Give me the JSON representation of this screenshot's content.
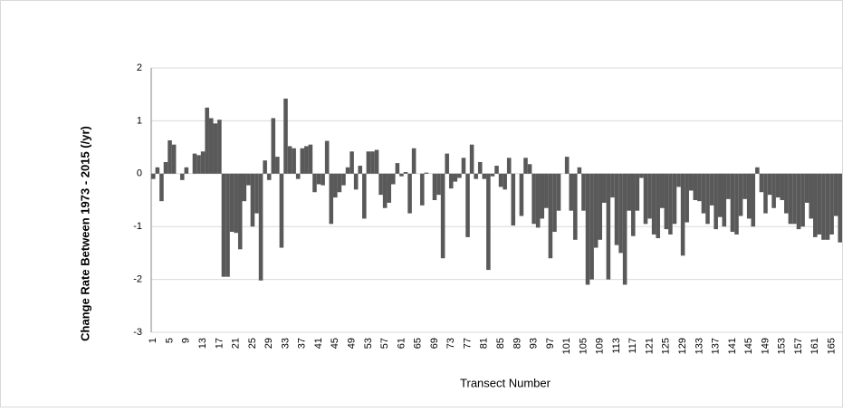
{
  "chart_data": {
    "type": "bar",
    "ylabel": "Change Rate Between 1973 - 2015 (/yr)",
    "xlabel": "Transect Number",
    "categories": [
      1,
      null,
      null,
      null,
      5,
      null,
      null,
      null,
      9,
      null,
      null,
      null,
      13,
      null,
      null,
      null,
      17,
      null,
      null,
      null,
      21,
      null,
      null,
      null,
      25,
      null,
      null,
      null,
      29,
      null,
      null,
      null,
      33,
      null,
      null,
      null,
      37,
      null,
      null,
      null,
      41,
      null,
      null,
      null,
      45,
      null,
      null,
      null,
      49,
      null,
      null,
      null,
      53,
      null,
      null,
      null,
      57,
      null,
      null,
      null,
      61,
      null,
      null,
      null,
      65,
      null,
      null,
      null,
      69,
      null,
      null,
      null,
      73,
      null,
      null,
      null,
      77,
      null,
      null,
      null,
      81,
      null,
      null,
      null,
      85,
      null,
      null,
      null,
      89,
      null,
      null,
      null,
      93,
      null,
      null,
      null,
      97,
      null,
      null,
      null,
      101,
      null,
      null,
      null,
      105,
      null,
      null,
      null,
      109,
      null,
      null,
      null,
      113,
      null,
      null,
      null,
      117,
      null,
      null,
      null,
      121,
      null,
      null,
      null,
      125,
      null,
      null,
      null,
      129,
      null,
      null,
      null,
      133,
      null,
      null,
      null,
      137,
      null,
      null,
      null,
      141,
      null,
      null,
      null,
      145,
      null,
      null,
      null,
      149,
      null,
      null,
      null,
      153,
      null,
      null,
      null,
      157,
      null,
      null,
      null,
      161,
      null,
      null,
      null,
      165,
      null,
      null
    ],
    "values": [
      -0.1,
      0.12,
      -0.52,
      0.22,
      0.63,
      0.55,
      0,
      -0.12,
      0.12,
      0,
      0.38,
      0.35,
      0.42,
      1.25,
      1.05,
      0.95,
      1.02,
      -1.95,
      -1.95,
      -1.1,
      -1.12,
      -1.43,
      -0.52,
      -0.22,
      -1.0,
      -0.75,
      -2.02,
      0.25,
      -0.12,
      1.05,
      0.32,
      -1.4,
      1.42,
      0.52,
      0.48,
      -0.1,
      0.48,
      0.52,
      0.55,
      -0.35,
      -0.2,
      -0.22,
      0.62,
      -0.95,
      -0.45,
      -0.35,
      -0.22,
      0.12,
      0.42,
      -0.3,
      0.15,
      -0.85,
      0.42,
      0.42,
      0.45,
      -0.4,
      -0.65,
      -0.55,
      -0.2,
      0.2,
      -0.05,
      0.03,
      -0.75,
      0.48,
      0,
      -0.6,
      0.02,
      0,
      -0.5,
      -0.4,
      -1.6,
      0.38,
      -0.28,
      -0.15,
      -0.08,
      0.3,
      -1.2,
      0.55,
      -0.1,
      0.22,
      -0.1,
      -1.82,
      -0.05,
      0.15,
      -0.25,
      -0.3,
      0.3,
      -0.98,
      0,
      -0.8,
      0.3,
      0.18,
      -0.95,
      -1.02,
      -0.85,
      -0.65,
      -1.6,
      -1.1,
      -0.7,
      0,
      0.32,
      -0.7,
      -1.25,
      0.12,
      -0.7,
      -2.1,
      -2.0,
      -1.4,
      -1.25,
      -0.55,
      -2.0,
      -0.45,
      -1.35,
      -1.5,
      -2.1,
      -0.7,
      -1.18,
      -0.7,
      -0.08,
      -0.95,
      -0.85,
      -1.15,
      -1.22,
      -0.65,
      -1.05,
      -1.15,
      -0.95,
      -0.25,
      -1.55,
      -0.92,
      -0.32,
      -0.5,
      -0.52,
      -0.75,
      -0.95,
      -0.6,
      -1.05,
      -0.82,
      -1.0,
      -0.48,
      -1.1,
      -1.15,
      -0.8,
      -0.48,
      -0.85,
      -1.0,
      0.12,
      -0.35,
      -0.75,
      -0.4,
      -0.65,
      -0.45,
      -0.5,
      -0.75,
      -0.95,
      -0.95,
      -1.05,
      -1.0,
      -0.55,
      -0.85,
      -1.2,
      -1.15,
      -1.25,
      -1.25,
      -1.15,
      -0.8,
      -1.3
    ],
    "color": "#595959",
    "ylim": [
      -3,
      2
    ],
    "yticks": [
      -3,
      -2,
      -1,
      0,
      1,
      2
    ],
    "grid": true
  }
}
